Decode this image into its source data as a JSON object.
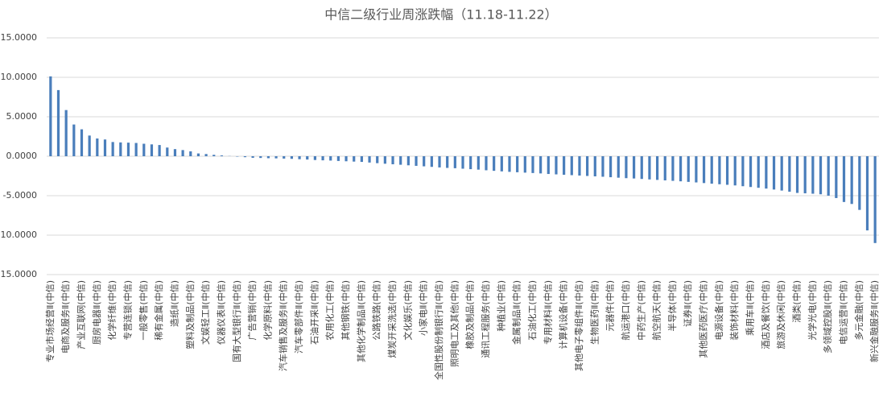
{
  "chart_data": {
    "type": "bar",
    "title": "中信二级行业周涨跌幅（11.18-11.22）",
    "categories": [
      "专业市场经营Ⅱ(中信)",
      null,
      "电商及服务Ⅱ(中信)",
      null,
      "产业互联网(中信)",
      null,
      "厨房电器Ⅱ(中信)",
      null,
      "化学纤维(中信)",
      null,
      "专营连锁(中信)",
      null,
      "一般零售(中信)",
      null,
      "稀有金属(中信)",
      null,
      "造纸Ⅱ(中信)",
      null,
      "塑料及制品(中信)",
      null,
      "文娱轻工Ⅱ(中信)",
      null,
      "仪器仪表Ⅱ(中信)",
      null,
      "国有大型银行Ⅱ(中信)",
      null,
      "广告营销(中信)",
      null,
      "化学原料(中信)",
      null,
      "汽车销售及服务Ⅱ(中信)",
      null,
      "汽车零部件Ⅱ(中信)",
      null,
      "石油开采Ⅱ(中信)",
      null,
      "农用化工(中信)",
      null,
      "其他钢铁(中信)",
      null,
      "其他化学制品Ⅱ(中信)",
      null,
      "公路铁路(中信)",
      null,
      "煤炭开采洗选(中信)",
      null,
      "文化娱乐(中信)",
      null,
      "小家电Ⅱ(中信)",
      null,
      "全国性股份制银行Ⅱ(中信)",
      null,
      "照明电工及其他(中信)",
      null,
      "橡胶及制品(中信)",
      null,
      "通讯工程服务(中信)",
      null,
      "种植业(中信)",
      null,
      "金属制品Ⅱ(中信)",
      null,
      "石油化工(中信)",
      null,
      "专用材料Ⅱ(中信)",
      null,
      "计算机设备(中信)",
      null,
      "其他电子零组件Ⅱ(中信)",
      null,
      "生物医药Ⅱ(中信)",
      null,
      "元器件(中信)",
      null,
      "航运港口(中信)",
      null,
      "中药生产(中信)",
      null,
      "航空航天(中信)",
      null,
      "半导体(中信)",
      null,
      "证券Ⅱ(中信)",
      null,
      "其他医药医疗(中信)",
      null,
      "电源设备(中信)",
      null,
      "装饰材料(中信)",
      null,
      "乘用车Ⅱ(中信)",
      null,
      "酒店及餐饮(中信)",
      null,
      "旅游及休闲(中信)",
      null,
      "酒类(中信)",
      null,
      "光学光电(中信)",
      null,
      "多领域控股Ⅱ(中信)",
      null,
      "电信运营Ⅱ(中信)",
      null,
      "多元金融(中信)",
      null,
      "新兴金融服务Ⅱ(中信)"
    ],
    "values": [
      10.12,
      8.38,
      5.85,
      4.02,
      3.41,
      2.62,
      2.25,
      2.12,
      1.8,
      1.75,
      1.72,
      1.68,
      1.58,
      1.5,
      1.42,
      1.1,
      0.9,
      0.78,
      0.62,
      0.35,
      0.28,
      0.18,
      0.1,
      0.02,
      -0.05,
      -0.12,
      -0.2,
      -0.22,
      -0.25,
      -0.27,
      -0.3,
      -0.33,
      -0.38,
      -0.42,
      -0.48,
      -0.52,
      -0.55,
      -0.6,
      -0.64,
      -0.68,
      -0.72,
      -0.8,
      -0.88,
      -0.95,
      -1.02,
      -1.08,
      -1.15,
      -1.22,
      -1.28,
      -1.35,
      -1.42,
      -1.48,
      -1.52,
      -1.58,
      -1.64,
      -1.7,
      -1.78,
      -1.85,
      -1.92,
      -1.98,
      -2.03,
      -2.08,
      -2.13,
      -2.18,
      -2.25,
      -2.3,
      -2.35,
      -2.4,
      -2.45,
      -2.5,
      -2.55,
      -2.6,
      -2.66,
      -2.72,
      -2.78,
      -2.82,
      -2.88,
      -2.94,
      -3.0,
      -3.06,
      -3.12,
      -3.18,
      -3.25,
      -3.32,
      -3.4,
      -3.48,
      -3.55,
      -3.62,
      -3.7,
      -3.8,
      -3.9,
      -4.0,
      -4.1,
      -4.22,
      -4.35,
      -4.5,
      -4.65,
      -4.7,
      -4.75,
      -4.82,
      -5.0,
      -5.3,
      -5.8,
      -6.05,
      -6.8,
      -9.4,
      -11.0
    ],
    "color": "#4a7ebb",
    "ylim": [
      -15,
      15
    ],
    "yticks": [
      {
        "value": -15,
        "label": "-15.0000"
      },
      {
        "value": -10,
        "label": "-10.0000"
      },
      {
        "value": -5,
        "label": "-5.0000"
      },
      {
        "value": 0,
        "label": "0.0000"
      },
      {
        "value": 5,
        "label": "5.0000"
      },
      {
        "value": 10,
        "label": "10.0000"
      },
      {
        "value": 15,
        "label": "15.0000"
      }
    ],
    "grid": true
  }
}
